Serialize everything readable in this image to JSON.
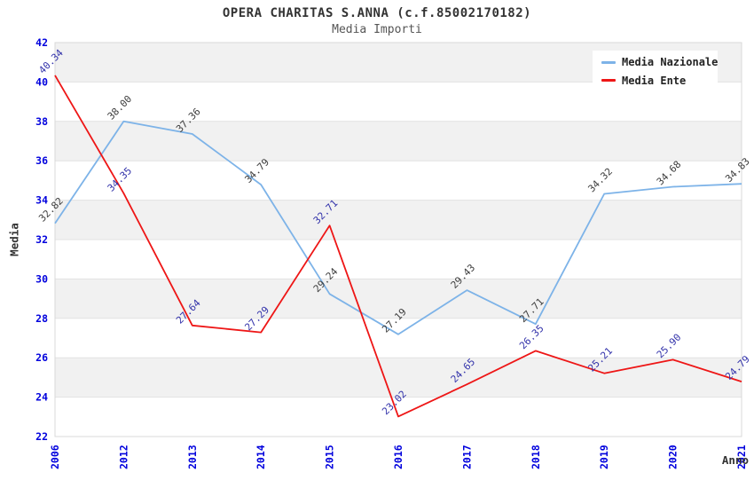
{
  "title": "OPERA CHARITAS S.ANNA (c.f.85002170182)",
  "subtitle": "Media Importi",
  "chart_data": {
    "type": "line",
    "title": "OPERA CHARITAS S.ANNA (c.f.85002170182)",
    "subtitle": "Media Importi",
    "xlabel": "Anno",
    "ylabel": "Media",
    "categories": [
      "2006",
      "2012",
      "2013",
      "2014",
      "2015",
      "2016",
      "2017",
      "2018",
      "2019",
      "2020",
      "2021"
    ],
    "series": [
      {
        "name": "Media Nazionale",
        "color": "#7db3e8",
        "label_color": "#3d3d3d",
        "values": [
          32.82,
          38.0,
          37.36,
          34.79,
          29.24,
          27.19,
          29.43,
          27.71,
          34.32,
          34.68,
          34.83
        ]
      },
      {
        "name": "Media Ente",
        "color": "#ee1616",
        "label_color": "#3232aa",
        "values": [
          40.34,
          34.35,
          27.64,
          27.29,
          32.71,
          23.02,
          24.65,
          26.35,
          25.21,
          25.9,
          24.79
        ]
      }
    ],
    "ylim": [
      22,
      42
    ],
    "yticks": [
      22,
      24,
      26,
      28,
      30,
      32,
      34,
      36,
      38,
      40,
      42
    ],
    "grid": true,
    "alternating_bands": true,
    "legend_position": "top-right",
    "value_decimals": 2
  },
  "colors": {
    "tick_label": "#0000dd",
    "band": "#f1f1f1",
    "grid": "#e2e2e2",
    "plot_border": "#d9d9d9",
    "title": "#333333",
    "subtitle": "#555555",
    "axis_title": "#333333",
    "legend_bg": "#ffffff",
    "legend_text": "#222222"
  }
}
